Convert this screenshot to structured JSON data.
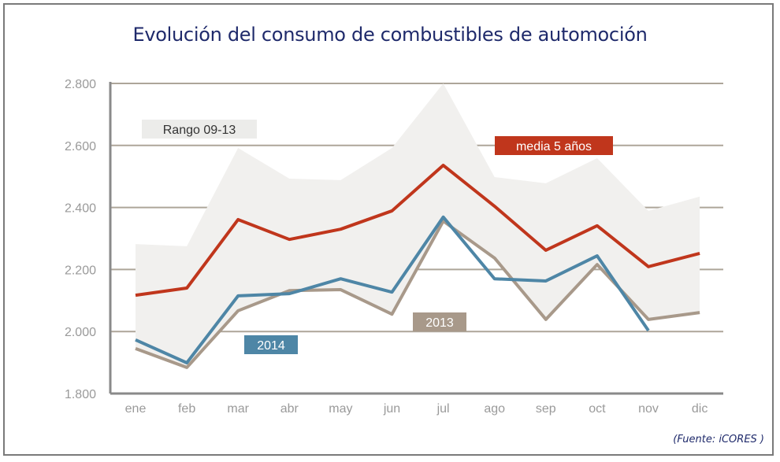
{
  "chart_data": {
    "type": "line",
    "title": "Evolución del consumo de combustibles de automoción",
    "source": "(Fuente: iCORES )",
    "xlabel": "",
    "ylabel": "",
    "categories": [
      "ene",
      "feb",
      "mar",
      "abr",
      "may",
      "jun",
      "jul",
      "ago",
      "sep",
      "oct",
      "nov",
      "dic"
    ],
    "ylim": [
      1800,
      2800
    ],
    "yticks": [
      1800,
      2000,
      2200,
      2400,
      2600,
      2800
    ],
    "ytick_labels": [
      "1.800",
      "2.000",
      "2.200",
      "2.400",
      "2.600",
      "2.800"
    ],
    "grid": true,
    "range_band": {
      "name": "Rango 09-13",
      "upper": [
        2282,
        2275,
        2592,
        2493,
        2488,
        2592,
        2800,
        2498,
        2478,
        2559,
        2389,
        2435
      ],
      "lower": [
        1945,
        1884,
        2067,
        2132,
        2135,
        2056,
        2356,
        2237,
        2039,
        2216,
        2039,
        2061
      ],
      "color": "#f1f0ee"
    },
    "series": [
      {
        "name": "media 5 años",
        "color": "#c0361c",
        "values": [
          2117,
          2140,
          2361,
          2297,
          2330,
          2389,
          2536,
          2404,
          2262,
          2341,
          2209,
          2252
        ]
      },
      {
        "name": "2013",
        "color": "#a8998a",
        "values": [
          1945,
          1884,
          2067,
          2132,
          2135,
          2056,
          2356,
          2237,
          2039,
          2216,
          2039,
          2061
        ]
      },
      {
        "name": "2014",
        "color": "#4e86a6",
        "values": [
          1973,
          1899,
          2115,
          2122,
          2170,
          2127,
          2369,
          2170,
          2163,
          2244,
          2003,
          null
        ]
      }
    ],
    "legend_labels": {
      "range": "Rango 09-13",
      "media": "media 5 años",
      "y2013": "2013",
      "y2014": "2014"
    }
  }
}
